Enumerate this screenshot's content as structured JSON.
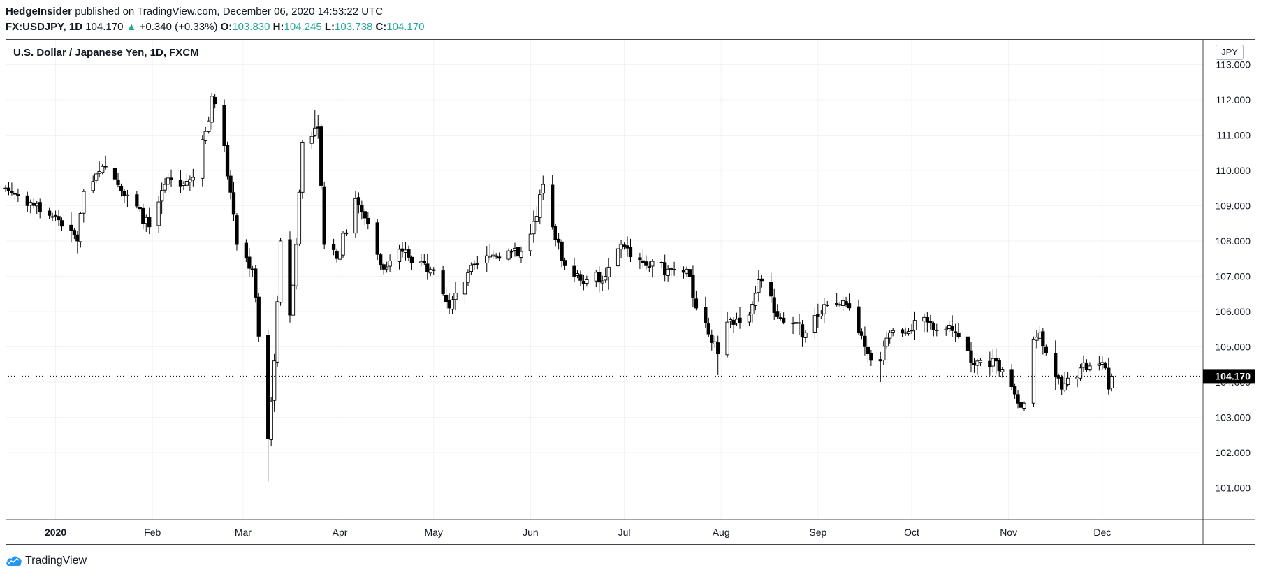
{
  "header": {
    "publisher": "HedgeInsider",
    "published_text": "published on TradingView.com, December 06, 2020 14:53:22 UTC",
    "symbol": "FX:USDJPY, 1D",
    "last": "104.170",
    "change_arrow": "▲",
    "change": "+0.340 (+0.33%)",
    "o_label": "O:",
    "o_value": "103.830",
    "h_label": "H:",
    "h_value": "104.245",
    "l_label": "L:",
    "l_value": "103.738",
    "c_label": "C:",
    "c_value": "104.170"
  },
  "chart_title": "U.S. Dollar / Japanese Yen, 1D, FXCM",
  "currency": "JPY",
  "footer": {
    "logo_text": "TradingView",
    "logo_icon": "tradingview-cloud-icon"
  },
  "colors": {
    "up_body": "#ffffff",
    "down_body": "#000000",
    "wick": "#000000",
    "teal": "#26a69a",
    "grid": "#f0f3fa"
  },
  "chart_data": {
    "type": "candlestick",
    "title": "U.S. Dollar / Japanese Yen, 1D, FXCM",
    "ylim": [
      100.1,
      113.7
    ],
    "y_ticks": [
      101,
      102,
      103,
      104,
      105,
      106,
      107,
      108,
      109,
      110,
      111,
      112,
      113
    ],
    "y_tick_labels": [
      "101.000",
      "102.000",
      "103.000",
      "104.000",
      "105.000",
      "106.000",
      "107.000",
      "108.000",
      "109.000",
      "110.000",
      "111.000",
      "112.000",
      "113.000"
    ],
    "x_start": "2019-12-16",
    "x_end": "2020-12-31",
    "x_ticks": [
      {
        "label": "2020",
        "date": "2020-01-01"
      },
      {
        "label": "Feb",
        "date": "2020-02-01"
      },
      {
        "label": "Mar",
        "date": "2020-03-01"
      },
      {
        "label": "Apr",
        "date": "2020-04-01"
      },
      {
        "label": "May",
        "date": "2020-05-01"
      },
      {
        "label": "Jun",
        "date": "2020-06-01"
      },
      {
        "label": "Jul",
        "date": "2020-07-01"
      },
      {
        "label": "Aug",
        "date": "2020-08-01"
      },
      {
        "label": "Sep",
        "date": "2020-09-01"
      },
      {
        "label": "Oct",
        "date": "2020-10-01"
      },
      {
        "label": "Nov",
        "date": "2020-11-01"
      },
      {
        "label": "Dec",
        "date": "2020-12-01"
      }
    ],
    "last_price": 104.17,
    "last_price_label": "104.170",
    "anchors": [
      {
        "date": "2019-12-16",
        "close": 109.5
      },
      {
        "date": "2020-01-02",
        "close": 108.6
      },
      {
        "date": "2020-01-08",
        "close": 108.0
      },
      {
        "date": "2020-01-10",
        "close": 109.4
      },
      {
        "date": "2020-01-17",
        "close": 110.1
      },
      {
        "date": "2020-01-24",
        "close": 109.3
      },
      {
        "date": "2020-01-31",
        "close": 108.4
      },
      {
        "date": "2020-02-05",
        "close": 109.6
      },
      {
        "date": "2020-02-14",
        "close": 109.8
      },
      {
        "date": "2020-02-19",
        "close": 111.4
      },
      {
        "date": "2020-02-20",
        "close": 112.1
      },
      {
        "date": "2020-02-24",
        "close": 110.7
      },
      {
        "date": "2020-02-28",
        "close": 107.9
      },
      {
        "date": "2020-03-04",
        "close": 107.2
      },
      {
        "date": "2020-03-06",
        "close": 105.3
      },
      {
        "date": "2020-03-09",
        "close": 102.4
      },
      {
        "date": "2020-03-11",
        "close": 104.6
      },
      {
        "date": "2020-03-13",
        "close": 108.0
      },
      {
        "date": "2020-03-16",
        "close": 105.9
      },
      {
        "date": "2020-03-18",
        "close": 107.9
      },
      {
        "date": "2020-03-20",
        "close": 110.8
      },
      {
        "date": "2020-03-24",
        "close": 111.2
      },
      {
        "date": "2020-03-25",
        "close": 111.2
      },
      {
        "date": "2020-03-27",
        "close": 107.9
      },
      {
        "date": "2020-03-31",
        "close": 107.5
      },
      {
        "date": "2020-04-06",
        "close": 109.2
      },
      {
        "date": "2020-04-10",
        "close": 108.5
      },
      {
        "date": "2020-04-15",
        "close": 107.2
      },
      {
        "date": "2020-04-21",
        "close": 107.7
      },
      {
        "date": "2020-04-30",
        "close": 107.2
      },
      {
        "date": "2020-05-06",
        "close": 106.1
      },
      {
        "date": "2020-05-12",
        "close": 107.1
      },
      {
        "date": "2020-05-20",
        "close": 107.6
      },
      {
        "date": "2020-05-29",
        "close": 107.7
      },
      {
        "date": "2020-06-03",
        "close": 108.7
      },
      {
        "date": "2020-06-05",
        "close": 109.6
      },
      {
        "date": "2020-06-08",
        "close": 108.4
      },
      {
        "date": "2020-06-12",
        "close": 107.3
      },
      {
        "date": "2020-06-19",
        "close": 106.9
      },
      {
        "date": "2020-06-25",
        "close": 107.0
      },
      {
        "date": "2020-06-30",
        "close": 107.9
      },
      {
        "date": "2020-07-08",
        "close": 107.3
      },
      {
        "date": "2020-07-15",
        "close": 107.2
      },
      {
        "date": "2020-07-21",
        "close": 107.2
      },
      {
        "date": "2020-07-24",
        "close": 106.1
      },
      {
        "date": "2020-07-31",
        "close": 104.8
      },
      {
        "date": "2020-08-03",
        "close": 105.7
      },
      {
        "date": "2020-08-10",
        "close": 105.9
      },
      {
        "date": "2020-08-13",
        "close": 106.9
      },
      {
        "date": "2020-08-20",
        "close": 105.8
      },
      {
        "date": "2020-08-28",
        "close": 105.4
      },
      {
        "date": "2020-09-03",
        "close": 106.2
      },
      {
        "date": "2020-09-10",
        "close": 106.2
      },
      {
        "date": "2020-09-17",
        "close": 104.8
      },
      {
        "date": "2020-09-21",
        "close": 104.6
      },
      {
        "date": "2020-09-24",
        "close": 105.4
      },
      {
        "date": "2020-10-06",
        "close": 105.7
      },
      {
        "date": "2020-10-15",
        "close": 105.4
      },
      {
        "date": "2020-10-21",
        "close": 104.5
      },
      {
        "date": "2020-10-28",
        "close": 104.6
      },
      {
        "date": "2020-11-04",
        "close": 103.4
      },
      {
        "date": "2020-11-06",
        "close": 103.4
      },
      {
        "date": "2020-11-09",
        "close": 105.2
      },
      {
        "date": "2020-11-11",
        "close": 105.4
      },
      {
        "date": "2020-11-18",
        "close": 103.8
      },
      {
        "date": "2020-11-24",
        "close": 104.4
      },
      {
        "date": "2020-12-02",
        "close": 104.4
      },
      {
        "date": "2020-12-03",
        "close": 103.8
      },
      {
        "date": "2020-12-04",
        "close": 104.17
      }
    ],
    "wick_extremes": [
      {
        "date": "2020-01-08",
        "low": 107.65
      },
      {
        "date": "2020-02-20",
        "high": 112.2
      },
      {
        "date": "2020-03-09",
        "low": 101.18
      },
      {
        "date": "2020-03-24",
        "high": 111.7
      },
      {
        "date": "2020-06-05",
        "high": 109.85
      },
      {
        "date": "2020-07-31",
        "low": 104.2
      },
      {
        "date": "2020-09-21",
        "low": 104.0
      },
      {
        "date": "2020-11-06",
        "low": 103.18
      },
      {
        "date": "2020-12-03",
        "low": 103.65
      }
    ]
  }
}
